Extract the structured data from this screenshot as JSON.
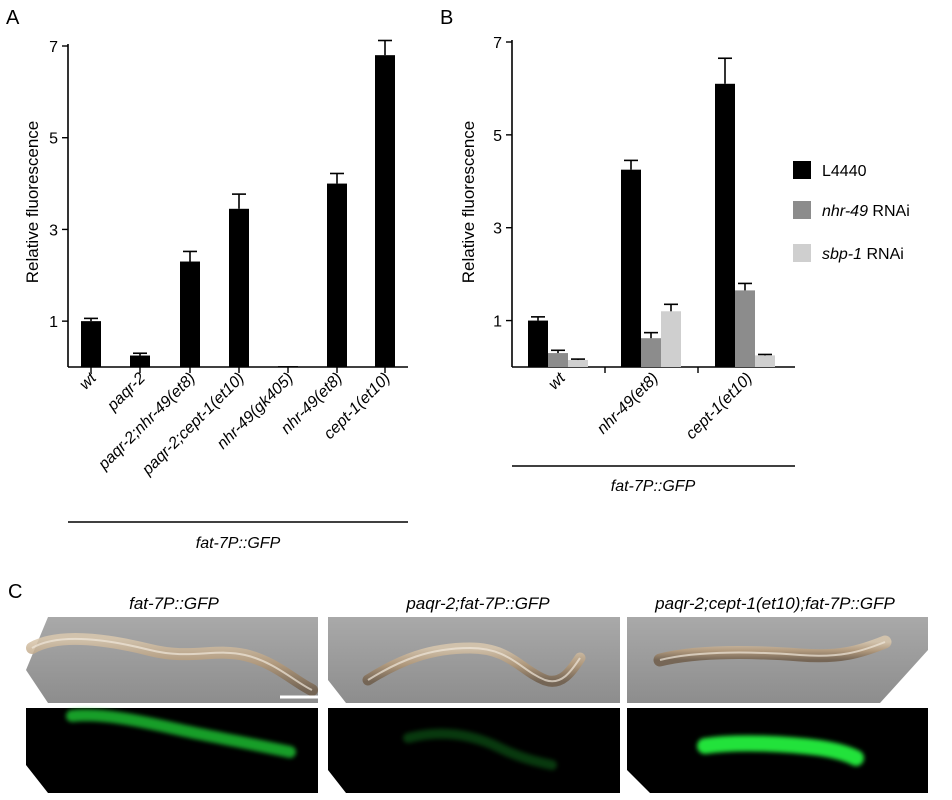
{
  "panels": {
    "a": "A",
    "b": "B",
    "c": "C"
  },
  "colors": {
    "L4440": "#000000",
    "nhr49": "#8c8c8c",
    "sbp1": "#cfcfcf",
    "gfp": "#22e23a"
  },
  "chart_data": [
    {
      "type": "bar",
      "panel": "A",
      "ylabel": "Relative fluorescence",
      "ylim": [
        0,
        7
      ],
      "yticks": [
        1,
        3,
        5,
        7
      ],
      "categories": [
        "wt",
        "paqr-2",
        "paqr-2;nhr-49(et8)",
        "paqr-2;cept-1(et10)",
        "nhr-49(gk405)",
        "nhr-49(et8)",
        "cept-1(et10)"
      ],
      "values": [
        1.0,
        0.25,
        2.3,
        3.45,
        0.02,
        4.0,
        6.8
      ],
      "errors": [
        0.06,
        0.05,
        0.22,
        0.32,
        0.0,
        0.22,
        0.32
      ],
      "group_label": "fat-7P::GFP"
    },
    {
      "type": "bar",
      "panel": "B",
      "ylabel": "Relative fluorescence",
      "ylim": [
        0,
        7
      ],
      "yticks": [
        1,
        3,
        5,
        7
      ],
      "categories": [
        "wt",
        "nhr-49(et8)",
        "cept-1(et10)"
      ],
      "series": [
        {
          "name": "L4440",
          "values": [
            1.0,
            4.25,
            6.1
          ],
          "errors": [
            0.08,
            0.2,
            0.55
          ]
        },
        {
          "name": "nhr-49 RNAi",
          "values": [
            0.3,
            0.62,
            1.65
          ],
          "errors": [
            0.06,
            0.12,
            0.15
          ]
        },
        {
          "name": "sbp-1 RNAi",
          "values": [
            0.15,
            1.2,
            0.25
          ],
          "errors": [
            0.02,
            0.15,
            0.02
          ]
        }
      ],
      "legend": [
        {
          "italic": "",
          "rest": "L4440"
        },
        {
          "italic": "nhr-49",
          "rest": " RNAi"
        },
        {
          "italic": "sbp-1",
          "rest": " RNAi"
        }
      ],
      "legend_position": "right",
      "group_label": "fat-7P::GFP"
    }
  ],
  "micrographs": {
    "titles": [
      "fat-7P::GFP",
      "paqr-2;fat-7P::GFP",
      "paqr-2;cept-1(et10);fat-7P::GFP"
    ],
    "gfp_intensity": [
      0.7,
      0.25,
      1.0
    ]
  }
}
